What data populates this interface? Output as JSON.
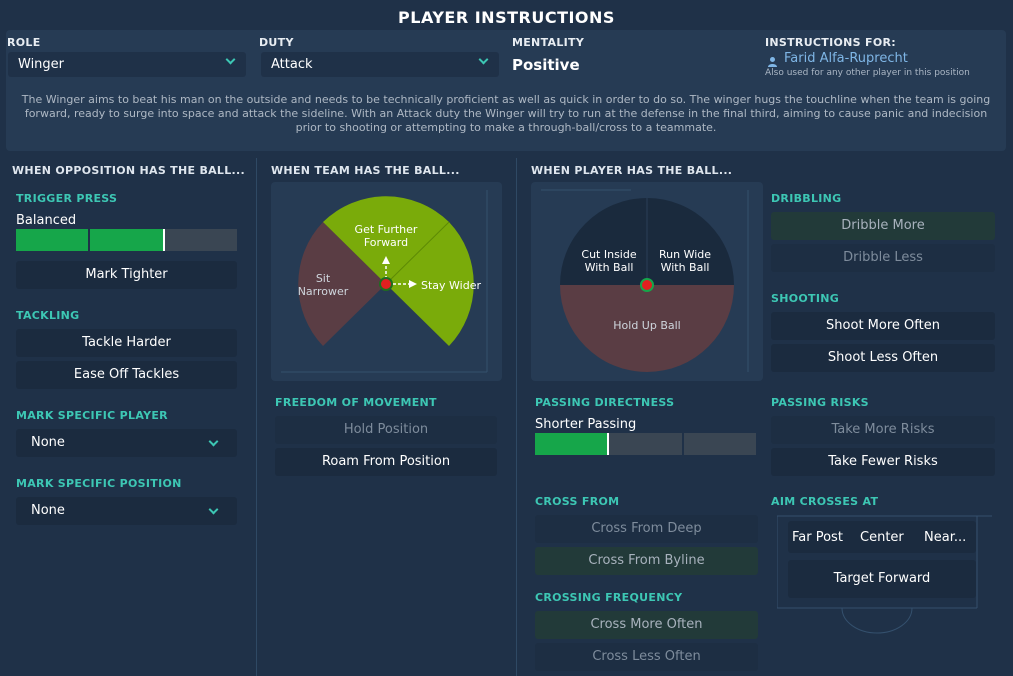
{
  "header": {
    "title": "PLAYER INSTRUCTIONS"
  },
  "top": {
    "role_label": "ROLE",
    "role_value": "Winger",
    "duty_label": "DUTY",
    "duty_value": "Attack",
    "mentality_label": "MENTALITY",
    "mentality_value": "Positive",
    "instructions_label": "INSTRUCTIONS FOR:",
    "player_name": "Farid Alfa-Ruprecht",
    "also_used": "Also used for any other player in this position",
    "description": "The Winger aims to beat his man on the outside and needs to be technically proficient as well as quick in order to do so. The winger hugs the touchline when the team is going forward, ready to surge into space and attack the sideline. With an Attack duty the Winger will try to run at the defense in the final third, aiming to cause panic and indecision prior to shooting or attempting to make a through-ball/cross to a teammate."
  },
  "opposition": {
    "heading": "WHEN OPPOSITION HAS THE BALL...",
    "trigger_press_label": "TRIGGER PRESS",
    "trigger_press_value": "Balanced",
    "trigger_press_level": 2,
    "trigger_press_max": 3,
    "mark_tighter": "Mark Tighter",
    "tackling_label": "TACKLING",
    "tackle_harder": "Tackle Harder",
    "ease_off": "Ease Off Tackles",
    "mark_player_label": "MARK SPECIFIC PLAYER",
    "mark_player_value": "None",
    "mark_position_label": "MARK SPECIFIC POSITION",
    "mark_position_value": "None"
  },
  "team": {
    "heading": "WHEN TEAM HAS THE BALL...",
    "get_further_forward": "Get Further Forward",
    "sit_narrower": "Sit Narrower",
    "stay_wider": "Stay Wider",
    "freedom_label": "FREEDOM OF MOVEMENT",
    "hold_position": "Hold Position",
    "roam": "Roam From Position"
  },
  "player": {
    "heading": "WHEN PLAYER HAS THE BALL...",
    "cut_inside": "Cut Inside With Ball",
    "run_wide": "Run Wide With Ball",
    "hold_up": "Hold Up Ball",
    "passing_directness_label": "PASSING DIRECTNESS",
    "passing_directness_value": "Shorter Passing",
    "passing_directness_level": 1,
    "passing_directness_max": 3,
    "cross_from_label": "CROSS FROM",
    "cross_deep": "Cross From Deep",
    "cross_byline": "Cross From Byline",
    "crossing_freq_label": "CROSSING FREQUENCY",
    "cross_more": "Cross More Often",
    "cross_less": "Cross Less Often",
    "dribbling_label": "DRIBBLING",
    "dribble_more": "Dribble More",
    "dribble_less": "Dribble Less",
    "shooting_label": "SHOOTING",
    "shoot_more": "Shoot More Often",
    "shoot_less": "Shoot Less Often",
    "passing_risks_label": "PASSING RISKS",
    "take_more_risks": "Take More Risks",
    "take_fewer_risks": "Take Fewer Risks",
    "aim_crosses_label": "AIM CROSSES AT",
    "far_post": "Far Post",
    "center": "Center",
    "near": "Near...",
    "target_forward": "Target Forward"
  },
  "colors": {
    "background": "#1f3148",
    "accent": "#3dc7b4",
    "green_active": "#16a64a",
    "sector_green": "#7aab0a",
    "sector_brown": "#5a3d44"
  }
}
